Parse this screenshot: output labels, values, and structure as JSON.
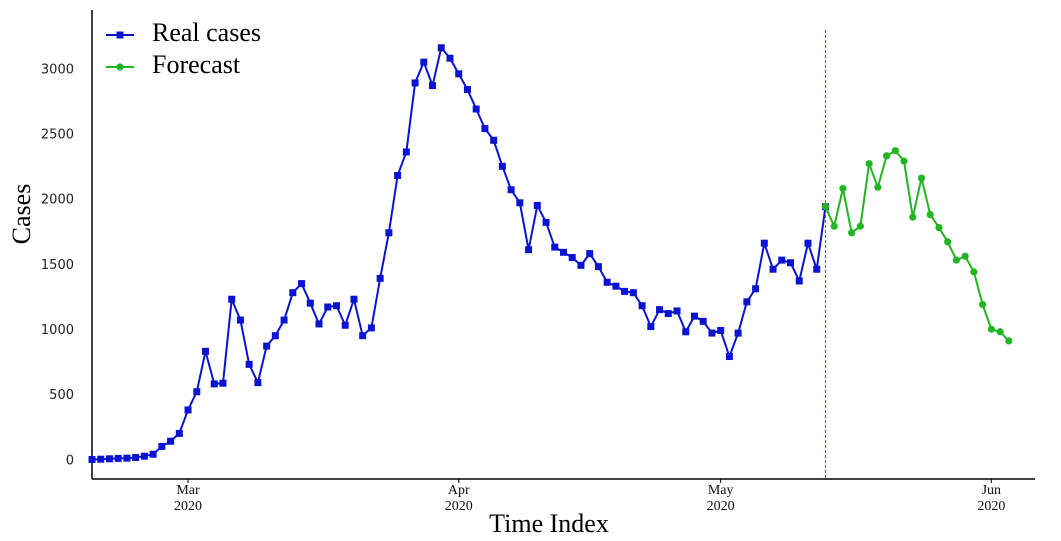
{
  "chart_data": {
    "type": "line",
    "x_label": "Time Index",
    "y_label": "Cases",
    "series": [
      {
        "name": "Real cases",
        "color": "#0a14d0",
        "marker": "square",
        "x": [
          0,
          1,
          2,
          3,
          4,
          5,
          6,
          7,
          8,
          9,
          10,
          11,
          12,
          13,
          14,
          15,
          16,
          17,
          18,
          19,
          20,
          21,
          22,
          23,
          24,
          25,
          26,
          27,
          28,
          29,
          30,
          31,
          32,
          33,
          34,
          35,
          36,
          37,
          38,
          39,
          40,
          41,
          42,
          43,
          44,
          45,
          46,
          47,
          48,
          49,
          50,
          51,
          52,
          53,
          54,
          55,
          56,
          57,
          58,
          59,
          60,
          61,
          62,
          63,
          64,
          65,
          66,
          67,
          68,
          69,
          70,
          71,
          72,
          73,
          74,
          75,
          76,
          77,
          78,
          79,
          80,
          81,
          82,
          83,
          84
        ],
        "values": [
          10,
          12,
          15,
          18,
          20,
          25,
          35,
          50,
          110,
          150,
          210,
          390,
          530,
          840,
          590,
          595,
          1240,
          1080,
          740,
          600,
          880,
          960,
          1080,
          1290,
          1360,
          1210,
          1050,
          1180,
          1190,
          1040,
          1240,
          960,
          1020,
          1400,
          1750,
          2190,
          2370,
          2900,
          3060,
          2880,
          3170,
          3090,
          2970,
          2850,
          2700,
          2550,
          2460,
          2260,
          2080,
          1980,
          1620,
          1960,
          1830,
          1640,
          1600,
          1560,
          1500,
          1590,
          1490,
          1370,
          1340,
          1300,
          1290,
          1190,
          1030,
          1160,
          1130,
          1150,
          990,
          1110,
          1070,
          980,
          1000,
          800,
          980,
          1220,
          1320,
          1670,
          1470,
          1540,
          1520,
          1380,
          1670,
          1470,
          1950
        ]
      },
      {
        "name": "Forecast",
        "color": "#22b522",
        "marker": "circle",
        "x": [
          84,
          85,
          86,
          87,
          88,
          89,
          90,
          91,
          92,
          93,
          94,
          95,
          96,
          97,
          98,
          99,
          100,
          101,
          102,
          103,
          104,
          105
        ],
        "values": [
          1950,
          1800,
          2090,
          1750,
          1800,
          2280,
          2100,
          2340,
          2380,
          2300,
          1870,
          2170,
          1890,
          1790,
          1680,
          1540,
          1570,
          1450,
          1200,
          1010,
          990,
          920
        ]
      }
    ],
    "xlim": [
      0,
      108
    ],
    "xticks": [
      {
        "value": 11,
        "label": "Mar 2020"
      },
      {
        "value": 42,
        "label": "Apr 2020"
      },
      {
        "value": 72,
        "label": "May 2020"
      },
      {
        "value": 103,
        "label": "Jun 2020"
      }
    ],
    "ylim": [
      -140,
      3460
    ],
    "yticks": [
      0,
      500,
      1000,
      1500,
      2000,
      2500,
      3000
    ],
    "grid": false,
    "legend": "upper-left",
    "vline_x": 84,
    "vline_color": "#c0392b"
  }
}
